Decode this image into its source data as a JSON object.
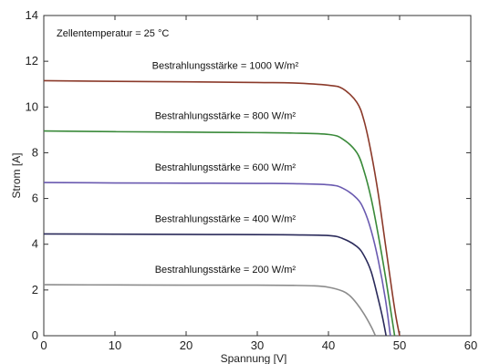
{
  "chart_data": {
    "type": "line",
    "title": "",
    "xlabel": "Spannung [V]",
    "ylabel": "Strom [A]",
    "xlim": [
      0,
      60
    ],
    "ylim": [
      0,
      14
    ],
    "xticks": [
      0,
      10,
      20,
      30,
      40,
      50,
      60
    ],
    "yticks": [
      0,
      2,
      4,
      6,
      8,
      10,
      12,
      14
    ],
    "grid": false,
    "annotation": "Zellentemperatur = 25 °C",
    "series": [
      {
        "name": "Bestrahlungsstärke = 1000 W/m²",
        "color": "#8b3a2a",
        "x": [
          0,
          10,
          20,
          30,
          35,
          40,
          42,
          44,
          45,
          46,
          47,
          48,
          49,
          49.5,
          50
        ],
        "y": [
          11.15,
          11.12,
          11.1,
          11.07,
          11.05,
          10.95,
          10.8,
          10.2,
          9.4,
          8.0,
          6.2,
          4.0,
          1.8,
          0.8,
          0
        ]
      },
      {
        "name": "Bestrahlungsstärke = 800 W/m²",
        "color": "#3a8a3a",
        "x": [
          0,
          10,
          20,
          30,
          35,
          40,
          42,
          44,
          45,
          46,
          47,
          48,
          48.8,
          49.3
        ],
        "y": [
          8.95,
          8.92,
          8.9,
          8.88,
          8.86,
          8.8,
          8.6,
          8.0,
          7.2,
          6.0,
          4.4,
          2.6,
          1.0,
          0
        ]
      },
      {
        "name": "Bestrahlungsstärke = 600 W/m²",
        "color": "#6a5ab0",
        "x": [
          0,
          10,
          20,
          30,
          35,
          40,
          42,
          44,
          45,
          46,
          47,
          48,
          48.7
        ],
        "y": [
          6.7,
          6.68,
          6.67,
          6.66,
          6.65,
          6.6,
          6.45,
          6.0,
          5.5,
          4.6,
          3.3,
          1.6,
          0
        ]
      },
      {
        "name": "Bestrahlungsstärke = 400 W/m²",
        "color": "#2a2a5a",
        "x": [
          0,
          10,
          20,
          30,
          35,
          40,
          42,
          44,
          45,
          46,
          47,
          47.6,
          48.1
        ],
        "y": [
          4.45,
          4.44,
          4.43,
          4.42,
          4.41,
          4.38,
          4.25,
          3.9,
          3.5,
          2.8,
          1.6,
          0.8,
          0
        ]
      },
      {
        "name": "Bestrahlungsstärke = 200 W/m²",
        "color": "#8c8c8c",
        "x": [
          0,
          10,
          20,
          30,
          35,
          38,
          40,
          42,
          43,
          44,
          45,
          46,
          46.6
        ],
        "y": [
          2.23,
          2.22,
          2.21,
          2.21,
          2.2,
          2.18,
          2.12,
          1.95,
          1.75,
          1.4,
          0.95,
          0.4,
          0
        ]
      }
    ]
  }
}
